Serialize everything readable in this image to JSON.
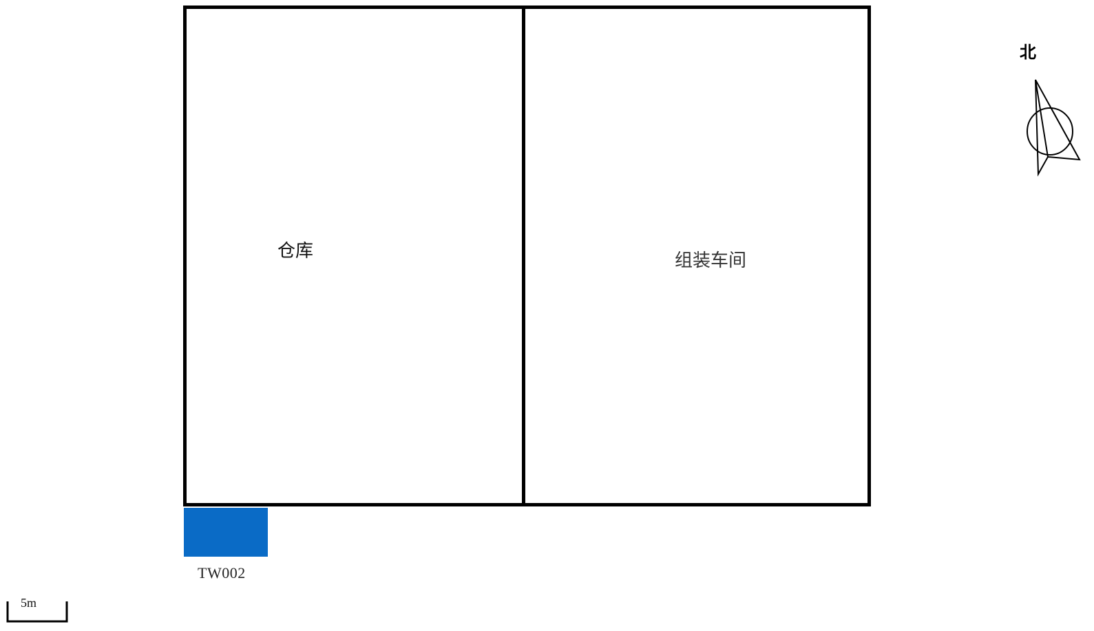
{
  "buildings": [
    {
      "label": "仓库"
    },
    {
      "label": "组装车间"
    }
  ],
  "well": {
    "label": "TW002",
    "color": "#0a6bc6"
  },
  "north": {
    "label": "北",
    "icon": "north-arrow-icon"
  },
  "scale": {
    "label": "5m",
    "icon": "scale-bar-icon"
  }
}
